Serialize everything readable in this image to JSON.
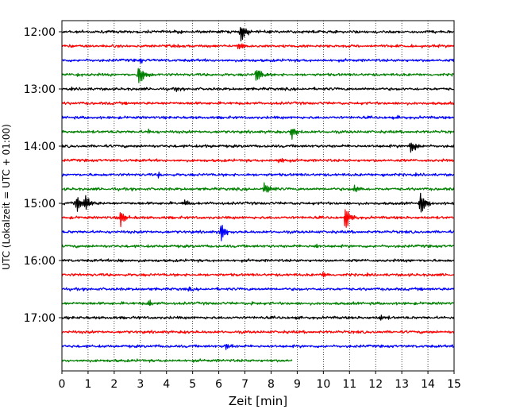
{
  "chart_data": {
    "type": "line",
    "title": "",
    "xlabel": "Zeit  [min]",
    "ylabel": "UTC (Lokalzeit = UTC + 01:00)",
    "xlim": [
      0,
      15
    ],
    "xticks": [
      "0",
      "1",
      "2",
      "3",
      "4",
      "5",
      "6",
      "7",
      "8",
      "9",
      "10",
      "11",
      "12",
      "13",
      "14",
      "15"
    ],
    "yticks": [
      "12:00",
      "13:00",
      "14:00",
      "15:00",
      "16:00",
      "17:00"
    ],
    "grid": "vertical-dotted",
    "trace_minutes": 15,
    "trace_spacing_minutes": 15,
    "color_cycle": [
      "#000000",
      "#ff0000",
      "#0000ff",
      "#008000"
    ],
    "traces": [
      {
        "start": "12:00",
        "events": [
          {
            "t": 6.85,
            "amp": 1.4
          },
          {
            "t": 4.5,
            "amp": 0.2
          },
          {
            "t": 9.6,
            "amp": 0.2
          }
        ]
      },
      {
        "start": "12:15",
        "events": [
          {
            "t": 6.75,
            "amp": 0.5
          }
        ]
      },
      {
        "start": "12:30",
        "events": [
          {
            "t": 3.0,
            "amp": 0.25
          }
        ]
      },
      {
        "start": "12:45",
        "events": [
          {
            "t": 2.95,
            "amp": 1.5
          },
          {
            "t": 7.45,
            "amp": 1.2
          },
          {
            "t": 0.6,
            "amp": 0.2
          }
        ]
      },
      {
        "start": "13:00",
        "events": [
          {
            "t": 4.4,
            "amp": 0.3
          }
        ]
      },
      {
        "start": "13:15",
        "events": []
      },
      {
        "start": "13:30",
        "events": [
          {
            "t": 12.8,
            "amp": 0.2
          }
        ]
      },
      {
        "start": "13:45",
        "events": [
          {
            "t": 8.8,
            "amp": 1.1
          },
          {
            "t": 3.3,
            "amp": 0.25
          }
        ]
      },
      {
        "start": "14:00",
        "events": [
          {
            "t": 13.35,
            "amp": 1.0
          },
          {
            "t": 5.5,
            "amp": 0.2
          }
        ]
      },
      {
        "start": "14:15",
        "events": [
          {
            "t": 8.3,
            "amp": 0.35
          }
        ]
      },
      {
        "start": "14:30",
        "events": [
          {
            "t": 3.7,
            "amp": 0.35
          },
          {
            "t": 12.3,
            "amp": 0.2
          }
        ]
      },
      {
        "start": "14:45",
        "events": [
          {
            "t": 7.75,
            "amp": 1.0
          },
          {
            "t": 11.2,
            "amp": 0.6
          }
        ]
      },
      {
        "start": "15:00",
        "events": [
          {
            "t": 0.55,
            "amp": 1.2
          },
          {
            "t": 0.9,
            "amp": 1.0
          },
          {
            "t": 13.7,
            "amp": 1.8
          },
          {
            "t": 4.7,
            "amp": 0.4
          }
        ]
      },
      {
        "start": "15:15",
        "events": [
          {
            "t": 2.25,
            "amp": 1.2
          },
          {
            "t": 10.85,
            "amp": 1.6
          }
        ]
      },
      {
        "start": "15:30",
        "events": [
          {
            "t": 6.1,
            "amp": 1.3
          }
        ]
      },
      {
        "start": "15:45",
        "events": [
          {
            "t": 9.7,
            "amp": 0.25
          }
        ]
      },
      {
        "start": "16:00",
        "events": [
          {
            "t": 2.2,
            "amp": 0.25
          },
          {
            "t": 13.2,
            "amp": 0.2
          }
        ]
      },
      {
        "start": "16:15",
        "events": [
          {
            "t": 10.0,
            "amp": 0.4
          }
        ]
      },
      {
        "start": "16:30",
        "events": [
          {
            "t": 4.9,
            "amp": 0.2
          }
        ]
      },
      {
        "start": "16:45",
        "events": [
          {
            "t": 3.3,
            "amp": 0.45
          },
          {
            "t": 7.3,
            "amp": 0.2
          }
        ]
      },
      {
        "start": "17:00",
        "events": [
          {
            "t": 12.2,
            "amp": 0.4
          },
          {
            "t": 2.7,
            "amp": 0.2
          }
        ]
      },
      {
        "start": "17:15",
        "events": [
          {
            "t": 4.6,
            "amp": 0.3
          }
        ]
      },
      {
        "start": "17:30",
        "events": [
          {
            "t": 6.3,
            "amp": 0.5
          },
          {
            "t": 3.55,
            "amp": 0.3
          }
        ]
      },
      {
        "start": "17:45",
        "end_minute": 8.8,
        "events": []
      }
    ]
  }
}
